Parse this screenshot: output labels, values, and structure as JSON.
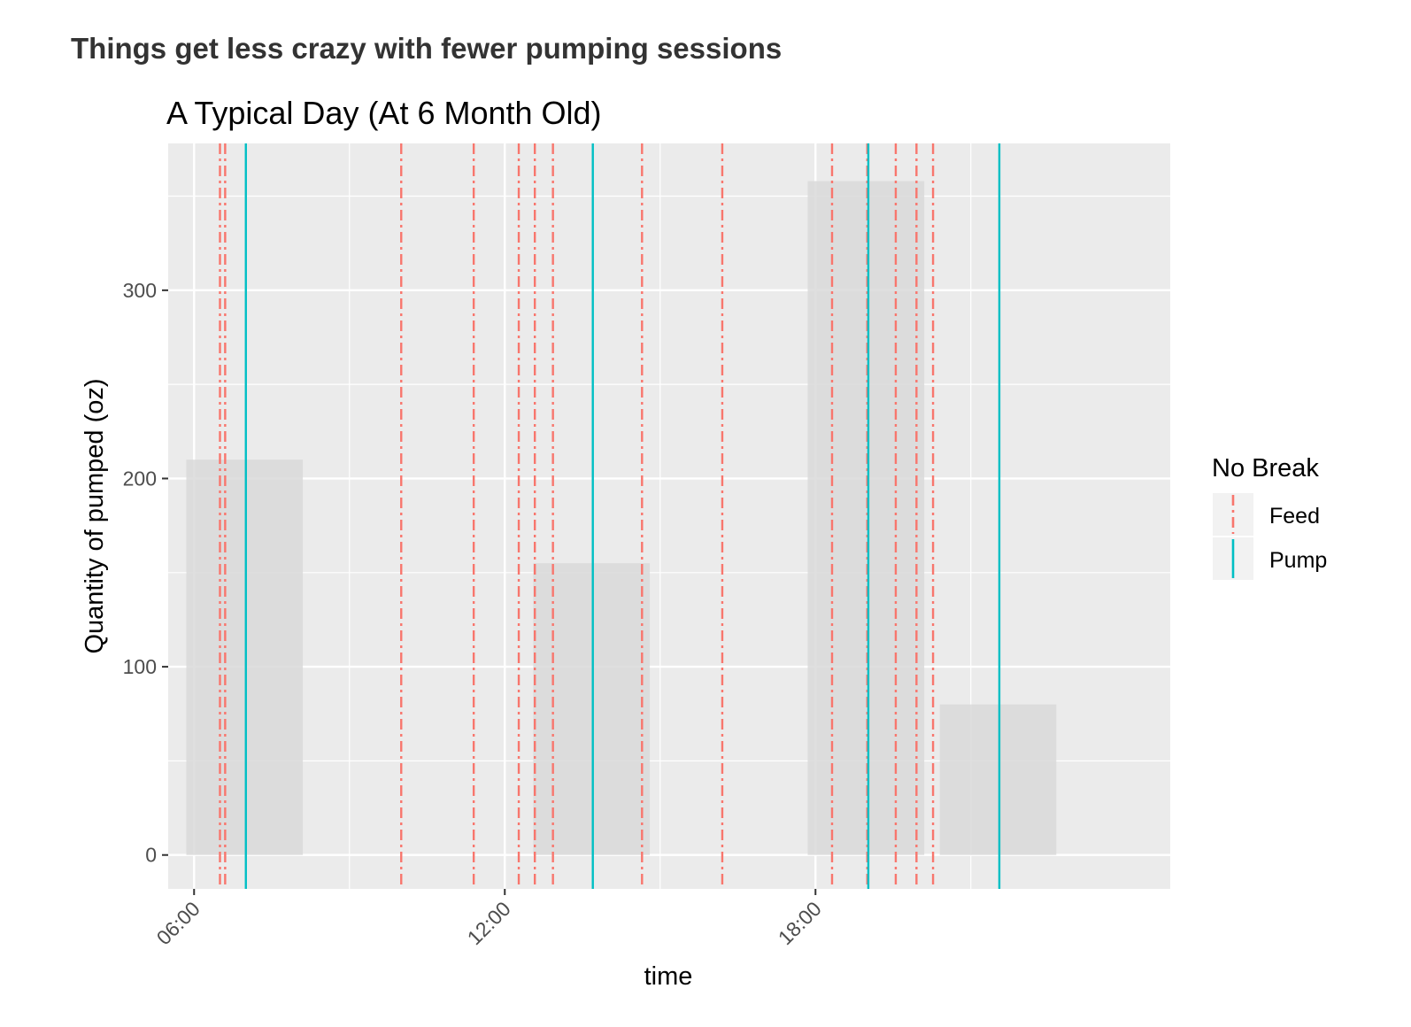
{
  "page": {
    "heading": "Things get less crazy with fewer pumping sessions"
  },
  "chart_data": {
    "type": "bar",
    "title": "A Typical Day (At 6 Month Old)",
    "xlabel": "time",
    "ylabel": "Quantity of pumped (oz)",
    "x_unit": "hour of day",
    "xlim": [
      5.5,
      24.85
    ],
    "ylim": [
      -18,
      378
    ],
    "x_ticks": [
      {
        "value": 6,
        "label": "06:00"
      },
      {
        "value": 12,
        "label": "12:00"
      },
      {
        "value": 18,
        "label": "18:00"
      }
    ],
    "y_ticks": [
      {
        "value": 0,
        "label": "0"
      },
      {
        "value": 100,
        "label": "100"
      },
      {
        "value": 200,
        "label": "200"
      },
      {
        "value": 300,
        "label": "300"
      }
    ],
    "grid": true,
    "bars": [
      {
        "start": 5.85,
        "end": 8.1,
        "value": 210
      },
      {
        "start": 12.55,
        "end": 14.8,
        "value": 155
      },
      {
        "start": 17.85,
        "end": 20.1,
        "value": 358
      },
      {
        "start": 20.4,
        "end": 22.65,
        "value": 80
      }
    ],
    "legend": {
      "title": "No Break",
      "position": "right",
      "entries": [
        {
          "label": "Feed",
          "color": "#F8766D",
          "dash": "dot-dash"
        },
        {
          "label": "Pump",
          "color": "#00BFC4",
          "dash": "solid"
        }
      ]
    },
    "series": [
      {
        "name": "Feed",
        "color": "#F8766D",
        "times": [
          6.5,
          6.6,
          10.0,
          11.4,
          12.27,
          12.58,
          12.93,
          14.65,
          16.2,
          18.32,
          19.0,
          19.55,
          19.95,
          20.27
        ]
      },
      {
        "name": "Pump",
        "color": "#00BFC4",
        "times": [
          7.0,
          13.7,
          19.02,
          21.55
        ]
      }
    ],
    "colors": {
      "panel": "#EBEBEB",
      "grid": "#FFFFFF",
      "bar": "#D9D9D9",
      "feed": "#F8766D",
      "pump": "#00BFC4"
    }
  }
}
